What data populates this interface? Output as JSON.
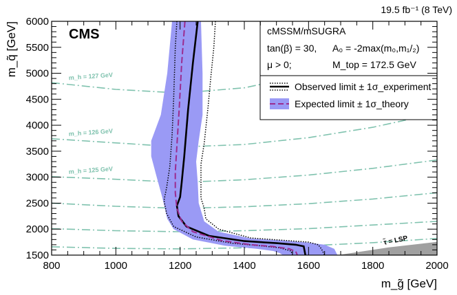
{
  "chart_data": {
    "type": "line",
    "lumi_label": "19.5 fb⁻¹ (8 TeV)",
    "experiment_label": "CMS",
    "xlabel": "m_g̃ [GeV]",
    "ylabel": "m_q̃ [GeV]",
    "xlim": [
      800,
      2000
    ],
    "ylim": [
      1500,
      6000
    ],
    "x_ticks": [
      800,
      1000,
      1200,
      1400,
      1600,
      1800,
      2000
    ],
    "y_ticks": [
      1500,
      2000,
      2500,
      3000,
      3500,
      4000,
      4500,
      5000,
      5500,
      6000
    ],
    "legend": {
      "title": "cMSSM/mSUGRA",
      "param_line1_left": "tan(β) = 30,",
      "param_line1_right": "A₀ = -2max(m₀,m₁/₂)",
      "param_line2_left": "μ > 0;",
      "param_line2_right": "M_top = 172.5 GeV",
      "observed": "Observed limit ± 1σ_experiment",
      "expected": "Expected limit ± 1σ_theory"
    },
    "excluded_region_label": "τ̃ = LSP",
    "higgs_contours": [
      {
        "label": "m_h = 127 GeV",
        "points": [
          [
            800,
            4820
          ],
          [
            1000,
            4690
          ],
          [
            1200,
            4620
          ],
          [
            1400,
            4720
          ],
          [
            1600,
            4980
          ],
          [
            1800,
            5420
          ],
          [
            2000,
            5950
          ]
        ]
      },
      {
        "label": "m_h = 126 GeV",
        "points": [
          [
            800,
            3740
          ],
          [
            1000,
            3660
          ],
          [
            1200,
            3580
          ],
          [
            1400,
            3630
          ],
          [
            1600,
            3760
          ],
          [
            1800,
            3960
          ],
          [
            2000,
            4230
          ]
        ]
      },
      {
        "label": "m_h = 125 GeV",
        "points": [
          [
            800,
            3010
          ],
          [
            1000,
            2960
          ],
          [
            1200,
            2900
          ],
          [
            1400,
            2950
          ],
          [
            1600,
            3040
          ],
          [
            1800,
            3170
          ],
          [
            2000,
            3330
          ]
        ]
      },
      {
        "label": "",
        "points": [
          [
            800,
            2500
          ],
          [
            1000,
            2440
          ],
          [
            1200,
            2400
          ],
          [
            1400,
            2430
          ],
          [
            1600,
            2490
          ],
          [
            1800,
            2580
          ],
          [
            2000,
            2700
          ]
        ]
      },
      {
        "label": "",
        "points": [
          [
            800,
            2010
          ],
          [
            1000,
            1970
          ],
          [
            1200,
            1950
          ],
          [
            1400,
            1970
          ],
          [
            1600,
            2010
          ],
          [
            1800,
            2080
          ],
          [
            2000,
            2150
          ]
        ]
      },
      {
        "label": "",
        "points": [
          [
            800,
            1660
          ],
          [
            1000,
            1630
          ],
          [
            1200,
            1620
          ],
          [
            1400,
            1640
          ],
          [
            1600,
            1680
          ],
          [
            1800,
            1740
          ],
          [
            2000,
            1820
          ]
        ]
      }
    ],
    "series": [
      {
        "name": "Observed limit",
        "style": "solid-thick",
        "color": "#000000",
        "points": [
          [
            1255,
            6000
          ],
          [
            1240,
            5200
          ],
          [
            1225,
            4300
          ],
          [
            1213,
            3400
          ],
          [
            1205,
            2900
          ],
          [
            1200,
            2620
          ],
          [
            1190,
            2450
          ],
          [
            1195,
            2250
          ],
          [
            1220,
            2050
          ],
          [
            1290,
            1870
          ],
          [
            1400,
            1770
          ],
          [
            1500,
            1730
          ],
          [
            1560,
            1700
          ],
          [
            1585,
            1670
          ],
          [
            1590,
            1500
          ]
        ]
      },
      {
        "name": "Observed limit +1 sigma",
        "style": "dotted",
        "color": "#000000",
        "points": [
          [
            1310,
            6000
          ],
          [
            1305,
            5500
          ],
          [
            1296,
            4950
          ],
          [
            1287,
            4350
          ],
          [
            1275,
            3650
          ],
          [
            1265,
            3250
          ],
          [
            1265,
            2900
          ],
          [
            1265,
            2600
          ],
          [
            1275,
            2400
          ],
          [
            1280,
            2200
          ],
          [
            1320,
            2000
          ],
          [
            1420,
            1830
          ],
          [
            1530,
            1780
          ],
          [
            1600,
            1750
          ],
          [
            1630,
            1700
          ],
          [
            1640,
            1620
          ],
          [
            1650,
            1500
          ]
        ]
      },
      {
        "name": "Observed limit -1 sigma",
        "style": "dotted",
        "color": "#000000",
        "points": [
          [
            1190,
            6000
          ],
          [
            1185,
            5500
          ],
          [
            1180,
            4500
          ],
          [
            1175,
            3800
          ],
          [
            1168,
            3200
          ],
          [
            1158,
            2800
          ],
          [
            1150,
            2550
          ],
          [
            1158,
            2300
          ],
          [
            1180,
            2050
          ],
          [
            1250,
            1850
          ],
          [
            1360,
            1730
          ],
          [
            1450,
            1680
          ],
          [
            1510,
            1640
          ],
          [
            1545,
            1580
          ],
          [
            1550,
            1500
          ]
        ]
      },
      {
        "name": "Expected limit",
        "style": "dashed",
        "color": "#9b2c8f",
        "points": [
          [
            1215,
            6000
          ],
          [
            1205,
            5200
          ],
          [
            1197,
            4300
          ],
          [
            1190,
            3600
          ],
          [
            1185,
            3100
          ],
          [
            1185,
            2700
          ],
          [
            1190,
            2400
          ],
          [
            1205,
            2150
          ],
          [
            1240,
            1950
          ],
          [
            1330,
            1780
          ],
          [
            1420,
            1700
          ],
          [
            1490,
            1665
          ],
          [
            1540,
            1620
          ],
          [
            1560,
            1570
          ],
          [
            1565,
            1500
          ]
        ]
      }
    ],
    "theory_band": {
      "color": "#9a9af5",
      "upper": [
        [
          1265,
          6000
        ],
        [
          1270,
          5000
        ],
        [
          1270,
          4200
        ],
        [
          1258,
          3700
        ],
        [
          1250,
          3300
        ],
        [
          1255,
          2900
        ],
        [
          1258,
          2500
        ],
        [
          1275,
          2150
        ],
        [
          1320,
          1950
        ],
        [
          1420,
          1820
        ],
        [
          1520,
          1780
        ],
        [
          1600,
          1740
        ],
        [
          1650,
          1700
        ],
        [
          1680,
          1620
        ],
        [
          1690,
          1500
        ]
      ],
      "lower": [
        [
          1175,
          6000
        ],
        [
          1160,
          5000
        ],
        [
          1140,
          4200
        ],
        [
          1110,
          3700
        ],
        [
          1110,
          3400
        ],
        [
          1125,
          3050
        ],
        [
          1145,
          2600
        ],
        [
          1160,
          2200
        ],
        [
          1180,
          2000
        ],
        [
          1240,
          1800
        ],
        [
          1340,
          1680
        ],
        [
          1440,
          1620
        ],
        [
          1490,
          1580
        ],
        [
          1510,
          1540
        ],
        [
          1520,
          1500
        ]
      ]
    },
    "stau_lsp_region": {
      "color": "#a0a0a0",
      "points": [
        [
          1690,
          1500
        ],
        [
          2000,
          1500
        ],
        [
          2000,
          1755
        ],
        [
          1850,
          1650
        ]
      ]
    }
  }
}
